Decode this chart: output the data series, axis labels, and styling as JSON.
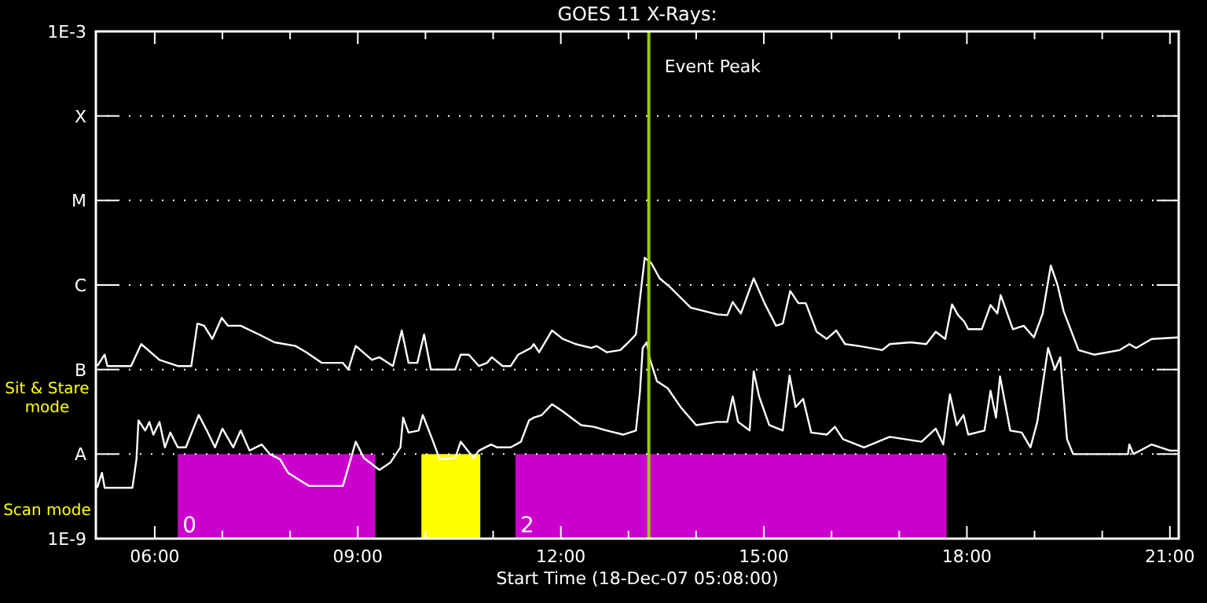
{
  "chart_data": {
    "type": "line",
    "title": "GOES 11 X-Rays:",
    "xlabel": "Start Time (18-Dec-07 05:08:00)",
    "log": "y",
    "grid": "y",
    "line_style": "solid",
    "xlim": [
      5.13,
      21.13
    ],
    "ylim": [
      1e-09,
      0.001
    ],
    "xticks": [
      {
        "value": 6,
        "label": "06:00"
      },
      {
        "value": 7,
        "label": null
      },
      {
        "value": 8,
        "label": null
      },
      {
        "value": 9,
        "label": "09:00"
      },
      {
        "value": 10,
        "label": null
      },
      {
        "value": 11,
        "label": null
      },
      {
        "value": 12,
        "label": "12:00"
      },
      {
        "value": 13,
        "label": null
      },
      {
        "value": 14,
        "label": null
      },
      {
        "value": 15,
        "label": "15:00"
      },
      {
        "value": 16,
        "label": null
      },
      {
        "value": 17,
        "label": null
      },
      {
        "value": 18,
        "label": "18:00"
      },
      {
        "value": 19,
        "label": null
      },
      {
        "value": 20,
        "label": null
      },
      {
        "value": 21,
        "label": "21:00"
      }
    ],
    "yticks": [
      {
        "value": 1e-09,
        "label": "1E-9"
      },
      {
        "value": 1e-08,
        "label": "A"
      },
      {
        "value": 1e-07,
        "label": "B"
      },
      {
        "value": 1e-06,
        "label": "C"
      },
      {
        "value": 1e-05,
        "label": "M"
      },
      {
        "value": 0.0001,
        "label": "X"
      },
      {
        "value": 0.001,
        "label": "1E-3"
      }
    ],
    "ref_lines": [
      {
        "axis": "x",
        "value": 13.3,
        "label": "Event Peak",
        "color": "#99cc00"
      }
    ],
    "bands": [
      {
        "axis": "x",
        "from": 6.34,
        "to": 9.26,
        "label": "0",
        "color": "#cc00cc"
      },
      {
        "axis": "x",
        "from": 9.94,
        "to": 10.81,
        "label": null,
        "color": "#ffff00"
      },
      {
        "axis": "x",
        "from": 11.33,
        "to": 17.7,
        "label": "2",
        "color": "#cc00cc"
      }
    ],
    "annotations": [
      "Sit & Stare mode",
      "Scan mode"
    ],
    "series": [
      {
        "color": "#ffffff",
        "x": [
          5.15,
          5.26,
          5.3,
          5.65,
          5.8,
          6.07,
          6.34,
          6.54,
          6.63,
          6.73,
          6.85,
          6.99,
          7.08,
          7.27,
          7.54,
          7.77,
          8.08,
          8.24,
          8.47,
          8.78,
          8.86,
          8.97,
          9.21,
          9.32,
          9.52,
          9.65,
          9.75,
          9.88,
          9.98,
          10.08,
          10.44,
          10.52,
          10.64,
          10.79,
          10.91,
          10.98,
          11.14,
          11.26,
          11.37,
          11.56,
          11.6,
          11.68,
          11.87,
          12.03,
          12.22,
          12.45,
          12.53,
          12.68,
          12.88,
          13.0,
          13.11,
          13.19,
          13.24,
          13.34,
          13.46,
          13.61,
          13.92,
          14.31,
          14.46,
          14.54,
          14.66,
          14.85,
          15.01,
          15.18,
          15.28,
          15.39,
          15.51,
          15.62,
          15.78,
          15.93,
          16.07,
          16.2,
          16.4,
          16.75,
          16.86,
          17.17,
          17.4,
          17.54,
          17.68,
          17.78,
          17.87,
          17.96,
          18.02,
          18.22,
          18.35,
          18.45,
          18.5,
          18.68,
          18.84,
          18.99,
          19.12,
          19.24,
          19.34,
          19.43,
          19.65,
          19.88,
          20.26,
          20.4,
          20.5,
          20.73,
          21.12
        ],
        "values": [
          1.1e-07,
          1.5e-07,
          1.1e-07,
          1.1e-07,
          2e-07,
          1.3e-07,
          1.1e-07,
          1.1e-07,
          3.5e-07,
          3.3e-07,
          2.3e-07,
          4.1e-07,
          3.3e-07,
          3.3e-07,
          2.6e-07,
          2.1e-07,
          1.9e-07,
          1.6e-07,
          1.2e-07,
          1.2e-07,
          1e-07,
          1.9e-07,
          1.3e-07,
          1.4e-07,
          1.1e-07,
          2.9e-07,
          1.2e-07,
          1.2e-07,
          2.6e-07,
          1e-07,
          1e-07,
          1.5e-07,
          1.5e-07,
          1.1e-07,
          1.2e-07,
          1.4e-07,
          1.1e-07,
          1.1e-07,
          1.5e-07,
          1.8e-07,
          2e-07,
          1.6e-07,
          2.9e-07,
          2.3e-07,
          2e-07,
          1.8e-07,
          1.9e-07,
          1.6e-07,
          1.7e-07,
          2.1e-07,
          2.6e-07,
          9.5e-07,
          2.1e-06,
          1.8e-06,
          1.2e-06,
          9.5e-07,
          5.4e-07,
          4.5e-07,
          4.4e-07,
          6.3e-07,
          4.6e-07,
          1.2e-06,
          6.1e-07,
          3.3e-07,
          3.5e-07,
          8.5e-07,
          6.1e-07,
          6.1e-07,
          2.8e-07,
          2.3e-07,
          2.9e-07,
          2e-07,
          1.9e-07,
          1.7e-07,
          2e-07,
          2.1e-07,
          2e-07,
          2.8e-07,
          2.3e-07,
          5.9e-07,
          4.4e-07,
          3.7e-07,
          3e-07,
          3e-07,
          5.8e-07,
          4.6e-07,
          7.6e-07,
          3e-07,
          3.3e-07,
          2.4e-07,
          4.6e-07,
          1.7e-06,
          1e-06,
          4.9e-07,
          1.7e-07,
          1.5e-07,
          1.7e-07,
          2e-07,
          1.8e-07,
          2.3e-07,
          2.4e-07
        ]
      },
      {
        "color": "#ffffff",
        "x": [
          5.15,
          5.22,
          5.26,
          5.67,
          5.73,
          5.76,
          5.86,
          5.92,
          5.98,
          6.07,
          6.15,
          6.23,
          6.34,
          6.46,
          6.65,
          6.77,
          6.89,
          7.0,
          7.16,
          7.27,
          7.4,
          7.58,
          7.7,
          7.85,
          7.97,
          8.28,
          8.78,
          8.97,
          9.09,
          9.32,
          9.48,
          9.63,
          9.67,
          9.75,
          9.9,
          9.96,
          10.1,
          10.21,
          10.44,
          10.52,
          10.71,
          10.79,
          10.97,
          11.06,
          11.26,
          11.41,
          11.53,
          11.6,
          11.72,
          11.87,
          12.03,
          12.3,
          12.49,
          12.68,
          12.92,
          13.11,
          13.17,
          13.21,
          13.27,
          13.32,
          13.42,
          13.58,
          13.77,
          14.0,
          14.31,
          14.46,
          14.54,
          14.62,
          14.79,
          14.85,
          14.93,
          15.08,
          15.28,
          15.38,
          15.47,
          15.58,
          15.7,
          15.93,
          16.05,
          16.17,
          16.48,
          16.86,
          17.33,
          17.54,
          17.65,
          17.75,
          17.85,
          17.95,
          18.02,
          18.26,
          18.35,
          18.43,
          18.49,
          18.64,
          18.81,
          18.94,
          19.04,
          19.2,
          19.3,
          19.38,
          19.48,
          19.57,
          20.38,
          20.4,
          20.46,
          20.65,
          20.73,
          21.0,
          21.12
        ],
        "values": [
          4e-09,
          6e-09,
          4e-09,
          4e-09,
          8.7e-09,
          2.5e-08,
          1.9e-08,
          2.4e-08,
          1.7e-08,
          2.4e-08,
          1.2e-08,
          1.8e-08,
          1.2e-08,
          1.2e-08,
          2.9e-08,
          1.9e-08,
          1.2e-08,
          2e-08,
          1.2e-08,
          1.9e-08,
          1.1e-08,
          1.3e-08,
          1e-08,
          8.7e-09,
          6e-09,
          4.2e-09,
          4.2e-09,
          1.4e-08,
          9e-09,
          6.5e-09,
          7.9e-09,
          1.2e-08,
          2.7e-08,
          1.8e-08,
          1.9e-08,
          2.9e-08,
          1.5e-08,
          8.7e-09,
          9e-09,
          1.4e-08,
          9e-09,
          1.1e-08,
          1.3e-08,
          1.2e-08,
          1.2e-08,
          1.4e-08,
          2.5e-08,
          2.7e-08,
          2.9e-08,
          3.9e-08,
          3.2e-08,
          2.2e-08,
          2.1e-08,
          1.9e-08,
          1.7e-08,
          1.9e-08,
          5.5e-08,
          1.8e-07,
          2.1e-07,
          1.3e-07,
          7.3e-08,
          6e-08,
          3.6e-08,
          2.2e-08,
          2.4e-08,
          2.4e-08,
          4.8e-08,
          2.4e-08,
          1.9e-08,
          9.5e-08,
          4.8e-08,
          2.2e-08,
          1.9e-08,
          8.5e-08,
          3.6e-08,
          4.5e-08,
          1.8e-08,
          1.7e-08,
          2.1e-08,
          1.5e-08,
          1.2e-08,
          1.6e-08,
          1.4e-08,
          2e-08,
          1.3e-08,
          5.1e-08,
          2.2e-08,
          2.9e-08,
          1.7e-08,
          1.9e-08,
          5.6e-08,
          2.7e-08,
          8.3e-08,
          1.9e-08,
          1.8e-08,
          1.2e-08,
          2.4e-08,
          1.8e-07,
          1e-07,
          1.4e-07,
          1.5e-08,
          1e-08,
          1e-08,
          1.3e-08,
          1e-08,
          1.2e-08,
          1.3e-08,
          1.1e-08,
          1.1e-08
        ]
      }
    ]
  }
}
